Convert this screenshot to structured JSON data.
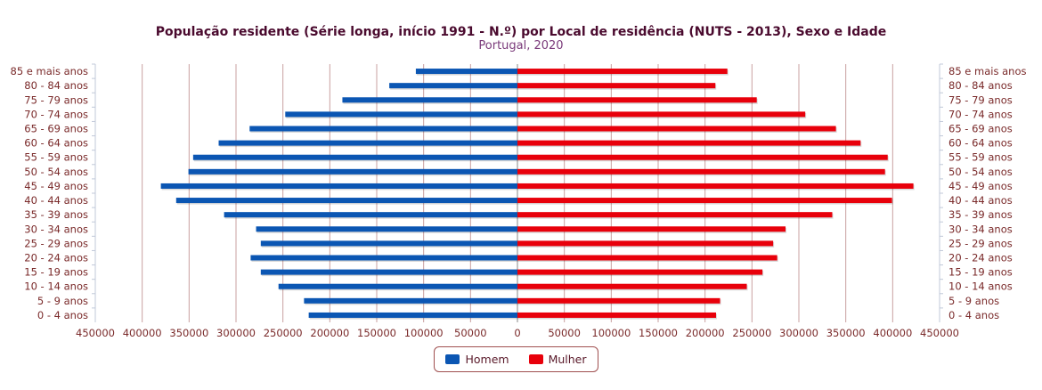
{
  "chart_data": {
    "type": "bar",
    "orientation": "horizontal-pyramid",
    "title": "População residente (Série longa, início 1991 - N.º) por Local de residência (NUTS - 2013), Sexo e Idade",
    "subtitle": "Portugal, 2020",
    "categories": [
      "85 e mais anos",
      "80 - 84 anos",
      "75 - 79 anos",
      "70 - 74 anos",
      "65 - 69 anos",
      "60 - 64 anos",
      "55 - 59 anos",
      "50 - 54 anos",
      "45 - 49 anos",
      "40 - 44 anos",
      "35 - 39 anos",
      "30 - 34 anos",
      "25 - 29 anos",
      "20 - 24 anos",
      "15 - 19 anos",
      "10 - 14 anos",
      "5 - 9 anos",
      "0 - 4 anos"
    ],
    "series": [
      {
        "name": "Homem",
        "color": "#0b56b3",
        "side": "left",
        "values": [
          108300,
          136600,
          186600,
          247500,
          285500,
          318500,
          345700,
          350700,
          380100,
          363800,
          312700,
          278600,
          273600,
          284400,
          273600,
          254700,
          227500,
          222500
        ]
      },
      {
        "name": "Mulher",
        "color": "#e8000b",
        "side": "right",
        "values": [
          223800,
          211000,
          255100,
          306800,
          339500,
          365800,
          394700,
          391800,
          422100,
          399300,
          335600,
          285800,
          272600,
          276900,
          261200,
          244500,
          216000,
          211700
        ]
      }
    ],
    "xlim": [
      -450000,
      450000
    ],
    "x_tick_labels": [
      "450000",
      "400000",
      "350000",
      "300000",
      "250000",
      "200000",
      "150000",
      "100000",
      "50000",
      "0",
      "50000",
      "100000",
      "150000",
      "200000",
      "250000",
      "300000",
      "350000",
      "400000",
      "450000"
    ],
    "grid": true,
    "legend_position": "bottom"
  }
}
